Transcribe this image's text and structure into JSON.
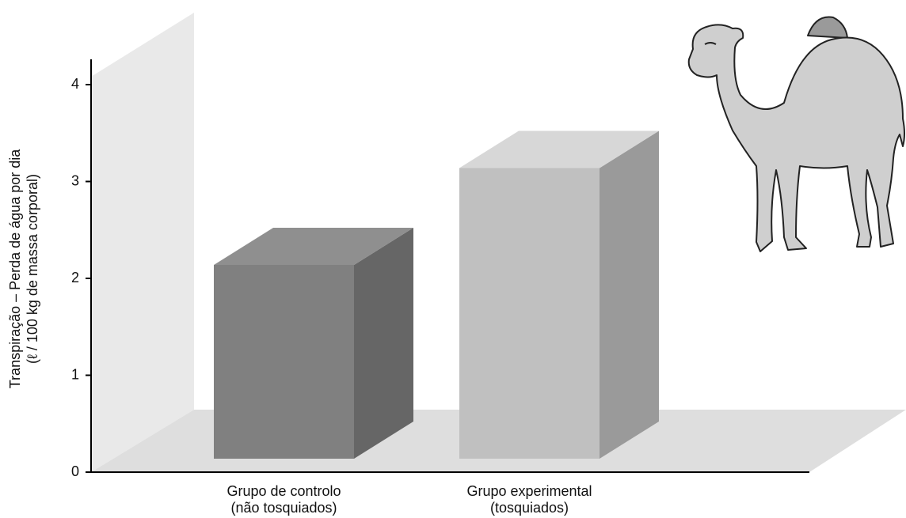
{
  "chart_data": {
    "type": "bar3d",
    "ylabel": [
      "Transpiração – Perda de água por dia",
      "(ℓ / 100 kg de massa corporal)"
    ],
    "categories": [
      [
        "Grupo de controlo",
        "(não tosquiados)"
      ],
      [
        "Grupo experimental",
        "(tosquiados)"
      ]
    ],
    "values": [
      2,
      3
    ],
    "colors": [
      "#808080",
      "#c0c0c0"
    ],
    "ylim": [
      0,
      4
    ],
    "yticks": [
      0,
      1,
      2,
      3,
      4
    ]
  }
}
